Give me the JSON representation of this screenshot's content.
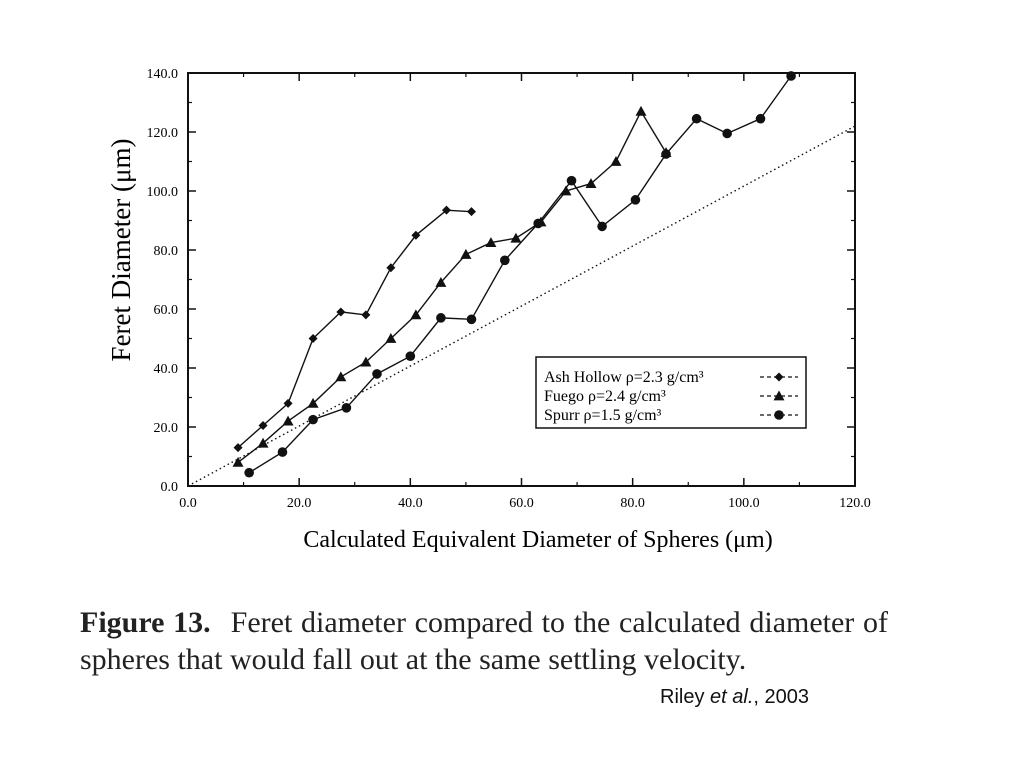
{
  "chart_data": {
    "type": "line",
    "ylabel": "Feret Diameter  (μm)",
    "xlabel": "Calculated Equivalent Diameter of Spheres (μm)",
    "xlim": [
      0,
      120
    ],
    "ylim": [
      0,
      140
    ],
    "x_ticks": [
      "0.0",
      "20.0",
      "40.0",
      "60.0",
      "80.0",
      "100.0",
      "120.0"
    ],
    "y_ticks": [
      "0.0",
      "20.0",
      "40.0",
      "60.0",
      "80.0",
      "100.0",
      "120.0",
      "140.0"
    ],
    "grid": false,
    "legend_position": "lower-right",
    "reference_line": {
      "style": "dotted",
      "x": [
        0,
        120
      ],
      "y": [
        0,
        122
      ]
    },
    "series": [
      {
        "name": "Ash Hollow ρ=2.3 g/cm³",
        "marker": "diamond",
        "x": [
          9,
          13.5,
          18,
          22.5,
          27.5,
          32,
          36.5,
          41,
          46.5,
          51
        ],
        "y": [
          13,
          20.5,
          28,
          50,
          59,
          58,
          74,
          85,
          93.5,
          93
        ]
      },
      {
        "name": "Fuego ρ=2.4 g/cm³",
        "marker": "triangle",
        "x": [
          9,
          13.5,
          18,
          22.5,
          27.5,
          32,
          36.5,
          41,
          45.5,
          50,
          54.5,
          59,
          63.5,
          68,
          72.5,
          77,
          81.5,
          86
        ],
        "y": [
          8,
          14.5,
          22,
          28,
          37,
          42,
          50,
          58,
          69,
          78.5,
          82.5,
          84,
          89.5,
          100,
          102.5,
          110,
          127,
          113
        ]
      },
      {
        "name": "Spurr ρ=1.5 g/cm³",
        "marker": "circle",
        "x": [
          11,
          17,
          22.5,
          28.5,
          34,
          40,
          45.5,
          51,
          57,
          63,
          69,
          74.5,
          80.5,
          86,
          91.5,
          97,
          103,
          108.5
        ],
        "y": [
          4.5,
          11.5,
          22.5,
          26.5,
          38,
          44,
          57,
          56.5,
          76.5,
          89,
          103.5,
          88,
          97,
          112.5,
          124.5,
          119.5,
          124.5,
          139
        ]
      }
    ]
  },
  "caption": {
    "label": "Figure 13.",
    "text": "Feret diameter compared to the calculated diameter of spheres that would fall out at the same settling velocity."
  },
  "citation": {
    "prefix": "Riley ",
    "italic": "et al.",
    "suffix": ", 2003"
  }
}
